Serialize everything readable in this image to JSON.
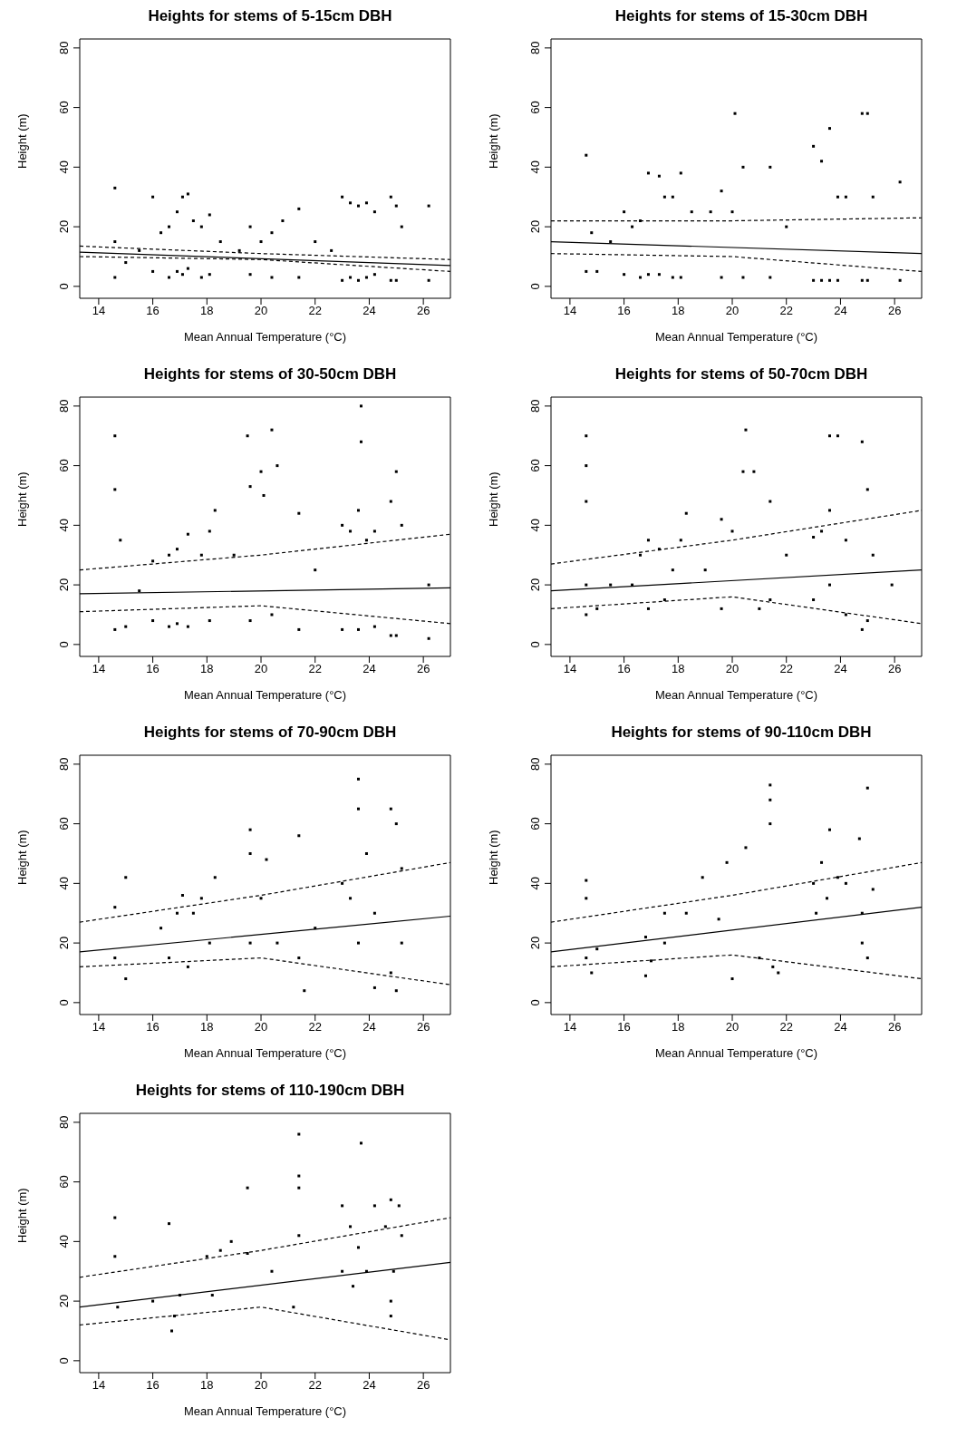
{
  "chart_data": [
    {
      "type": "scatter",
      "title": "Heights for stems of 5-15cm DBH",
      "xlabel": "Mean Annual Temperature (°C)",
      "ylabel": "Height (m)",
      "xlim": [
        13.3,
        27
      ],
      "ylim": [
        -4,
        83
      ],
      "xticks": [
        14,
        16,
        18,
        20,
        22,
        24,
        26
      ],
      "yticks": [
        0,
        20,
        40,
        60,
        80
      ],
      "series": [
        {
          "type": "scatter",
          "color": "#000000",
          "marker": "square",
          "x": [
            14.6,
            14.6,
            14.6,
            15.0,
            15.5,
            16.0,
            16.0,
            16.3,
            16.6,
            16.6,
            16.9,
            16.9,
            17.1,
            17.1,
            17.3,
            17.3,
            17.5,
            17.8,
            17.8,
            18.1,
            18.1,
            18.5,
            19.2,
            19.6,
            19.6,
            20.0,
            20.4,
            20.4,
            20.8,
            21.4,
            21.4,
            22.0,
            22.6,
            23.0,
            23.0,
            23.3,
            23.3,
            23.6,
            23.6,
            23.9,
            23.9,
            24.2,
            24.2,
            24.8,
            24.8,
            25.0,
            25.0,
            25.2,
            26.2,
            26.2
          ],
          "values": [
            33,
            3,
            15,
            8,
            12,
            30,
            5,
            18,
            20,
            3,
            25,
            5,
            30,
            4,
            31,
            6,
            22,
            20,
            3,
            24,
            4,
            15,
            12,
            20,
            4,
            15,
            18,
            3,
            22,
            26,
            3,
            15,
            12,
            30,
            2,
            28,
            3,
            27,
            2,
            28,
            3,
            25,
            4,
            30,
            2,
            27,
            2,
            20,
            27,
            2
          ]
        },
        {
          "type": "line",
          "color": "#000000",
          "line_style": "solid",
          "x": [
            13.3,
            27
          ],
          "values": [
            11.5,
            7
          ]
        },
        {
          "type": "line",
          "color": "#000000",
          "line_style": "dashed",
          "x": [
            13.3,
            20,
            27
          ],
          "values": [
            13.5,
            11,
            9
          ]
        },
        {
          "type": "line",
          "color": "#000000",
          "line_style": "dashed",
          "x": [
            13.3,
            20,
            27
          ],
          "values": [
            10,
            9,
            5
          ]
        }
      ]
    },
    {
      "type": "scatter",
      "title": "Heights for stems of 15-30cm DBH",
      "xlabel": "Mean Annual Temperature (°C)",
      "ylabel": "Height (m)",
      "xlim": [
        13.3,
        27
      ],
      "ylim": [
        -4,
        83
      ],
      "xticks": [
        14,
        16,
        18,
        20,
        22,
        24,
        26
      ],
      "yticks": [
        0,
        20,
        40,
        60,
        80
      ],
      "series": [
        {
          "type": "scatter",
          "color": "#000000",
          "marker": "square",
          "x": [
            14.6,
            14.6,
            14.8,
            15.0,
            15.5,
            16.0,
            16.0,
            16.3,
            16.6,
            16.6,
            16.9,
            16.9,
            17.3,
            17.3,
            17.5,
            17.8,
            17.8,
            18.1,
            18.1,
            18.5,
            19.2,
            19.6,
            19.6,
            20.1,
            20.0,
            20.4,
            20.4,
            21.4,
            21.4,
            22.0,
            23.0,
            23.0,
            23.3,
            23.3,
            23.6,
            23.6,
            23.9,
            23.9,
            24.2,
            24.8,
            24.8,
            25.0,
            25.0,
            25.2,
            26.2,
            26.2
          ],
          "values": [
            44,
            5,
            18,
            5,
            15,
            25,
            4,
            20,
            22,
            3,
            38,
            4,
            37,
            4,
            30,
            30,
            3,
            38,
            3,
            25,
            25,
            32,
            3,
            58,
            25,
            40,
            3,
            40,
            3,
            20,
            47,
            2,
            42,
            2,
            53,
            2,
            30,
            2,
            30,
            58,
            2,
            58,
            2,
            30,
            35,
            2
          ]
        },
        {
          "type": "line",
          "color": "#000000",
          "line_style": "solid",
          "x": [
            13.3,
            27
          ],
          "values": [
            15,
            11
          ]
        },
        {
          "type": "line",
          "color": "#000000",
          "line_style": "dashed",
          "x": [
            13.3,
            20,
            27
          ],
          "values": [
            22,
            22,
            23
          ]
        },
        {
          "type": "line",
          "color": "#000000",
          "line_style": "dashed",
          "x": [
            13.3,
            20,
            27
          ],
          "values": [
            11,
            10,
            5
          ]
        }
      ]
    },
    {
      "type": "scatter",
      "title": "Heights for stems of 30-50cm DBH",
      "xlabel": "Mean Annual Temperature (°C)",
      "ylabel": "Height (m)",
      "xlim": [
        13.3,
        27
      ],
      "ylim": [
        -4,
        83
      ],
      "xticks": [
        14,
        16,
        18,
        20,
        22,
        24,
        26
      ],
      "yticks": [
        0,
        20,
        40,
        60,
        80
      ],
      "series": [
        {
          "type": "scatter",
          "color": "#000000",
          "marker": "square",
          "x": [
            14.6,
            14.6,
            14.6,
            14.8,
            15.0,
            15.5,
            16.0,
            16.0,
            16.6,
            16.6,
            16.9,
            16.9,
            17.3,
            17.3,
            17.8,
            18.1,
            18.1,
            18.3,
            19.0,
            19.5,
            19.6,
            19.6,
            20.0,
            20.1,
            20.4,
            20.4,
            20.6,
            21.4,
            21.4,
            22.0,
            23.0,
            23.0,
            23.3,
            23.6,
            23.6,
            23.7,
            23.7,
            23.9,
            24.2,
            24.2,
            24.8,
            24.8,
            25.0,
            25.0,
            25.2,
            26.2,
            26.2
          ],
          "values": [
            70,
            52,
            5,
            35,
            6,
            18,
            28,
            8,
            30,
            6,
            32,
            7,
            37,
            6,
            30,
            38,
            8,
            45,
            30,
            70,
            53,
            8,
            58,
            50,
            72,
            10,
            60,
            44,
            5,
            25,
            40,
            5,
            38,
            45,
            5,
            80,
            68,
            35,
            38,
            6,
            48,
            3,
            58,
            3,
            40,
            20,
            2
          ]
        },
        {
          "type": "line",
          "color": "#000000",
          "line_style": "solid",
          "x": [
            13.3,
            27
          ],
          "values": [
            17,
            19
          ]
        },
        {
          "type": "line",
          "color": "#000000",
          "line_style": "dashed",
          "x": [
            13.3,
            20,
            27
          ],
          "values": [
            25,
            30,
            37
          ]
        },
        {
          "type": "line",
          "color": "#000000",
          "line_style": "dashed",
          "x": [
            13.3,
            20,
            27
          ],
          "values": [
            11,
            13,
            7
          ]
        }
      ]
    },
    {
      "type": "scatter",
      "title": "Heights for stems of 50-70cm DBH",
      "xlabel": "Mean Annual Temperature (°C)",
      "ylabel": "Height (m)",
      "xlim": [
        13.3,
        27
      ],
      "ylim": [
        -4,
        83
      ],
      "xticks": [
        14,
        16,
        18,
        20,
        22,
        24,
        26
      ],
      "yticks": [
        0,
        20,
        40,
        60,
        80
      ],
      "series": [
        {
          "type": "scatter",
          "color": "#000000",
          "marker": "square",
          "x": [
            14.6,
            14.6,
            14.6,
            14.6,
            14.6,
            15.0,
            15.5,
            16.3,
            16.6,
            16.9,
            16.9,
            17.3,
            17.5,
            17.8,
            18.1,
            18.3,
            19.0,
            19.6,
            19.6,
            20.0,
            20.4,
            20.5,
            20.8,
            21.0,
            21.4,
            21.4,
            22.0,
            23.0,
            23.0,
            23.3,
            23.6,
            23.6,
            23.6,
            23.9,
            24.2,
            24.2,
            24.8,
            24.8,
            25.0,
            25.0,
            25.2,
            25.9
          ],
          "values": [
            70,
            60,
            48,
            20,
            10,
            12,
            20,
            20,
            30,
            35,
            12,
            32,
            15,
            25,
            35,
            44,
            25,
            42,
            12,
            38,
            58,
            72,
            58,
            12,
            48,
            15,
            30,
            36,
            15,
            38,
            70,
            45,
            20,
            70,
            35,
            10,
            68,
            5,
            52,
            8,
            30,
            20
          ]
        },
        {
          "type": "line",
          "color": "#000000",
          "line_style": "solid",
          "x": [
            13.3,
            27
          ],
          "values": [
            18,
            25
          ]
        },
        {
          "type": "line",
          "color": "#000000",
          "line_style": "dashed",
          "x": [
            13.3,
            20,
            27
          ],
          "values": [
            27,
            35,
            45
          ]
        },
        {
          "type": "line",
          "color": "#000000",
          "line_style": "dashed",
          "x": [
            13.3,
            20,
            27
          ],
          "values": [
            12,
            16,
            7
          ]
        }
      ]
    },
    {
      "type": "scatter",
      "title": "Heights for stems of 70-90cm DBH",
      "xlabel": "Mean Annual Temperature (°C)",
      "ylabel": "Height (m)",
      "xlim": [
        13.3,
        27
      ],
      "ylim": [
        -4,
        83
      ],
      "xticks": [
        14,
        16,
        18,
        20,
        22,
        24,
        26
      ],
      "yticks": [
        0,
        20,
        40,
        60,
        80
      ],
      "series": [
        {
          "type": "scatter",
          "color": "#000000",
          "marker": "square",
          "x": [
            14.6,
            14.6,
            15.0,
            15.0,
            16.3,
            16.6,
            16.9,
            17.1,
            17.3,
            17.5,
            17.8,
            18.1,
            18.3,
            19.6,
            19.6,
            19.6,
            20.0,
            20.2,
            20.6,
            21.4,
            21.4,
            21.6,
            22.0,
            23.0,
            23.3,
            23.6,
            23.6,
            23.6,
            23.9,
            24.2,
            24.2,
            24.8,
            24.8,
            25.0,
            25.0,
            25.2,
            25.2
          ],
          "values": [
            32,
            15,
            42,
            8,
            25,
            15,
            30,
            36,
            12,
            30,
            35,
            20,
            42,
            58,
            50,
            20,
            35,
            48,
            20,
            56,
            15,
            4,
            25,
            40,
            35,
            75,
            65,
            20,
            50,
            30,
            5,
            65,
            10,
            60,
            4,
            45,
            20
          ]
        },
        {
          "type": "line",
          "color": "#000000",
          "line_style": "solid",
          "x": [
            13.3,
            27
          ],
          "values": [
            17,
            29
          ]
        },
        {
          "type": "line",
          "color": "#000000",
          "line_style": "dashed",
          "x": [
            13.3,
            20,
            27
          ],
          "values": [
            27,
            36,
            47
          ]
        },
        {
          "type": "line",
          "color": "#000000",
          "line_style": "dashed",
          "x": [
            13.3,
            20,
            27
          ],
          "values": [
            12,
            15,
            6
          ]
        }
      ]
    },
    {
      "type": "scatter",
      "title": "Heights for stems of 90-110cm DBH",
      "xlabel": "Mean Annual Temperature (°C)",
      "ylabel": "Height (m)",
      "xlim": [
        13.3,
        27
      ],
      "ylim": [
        -4,
        83
      ],
      "xticks": [
        14,
        16,
        18,
        20,
        22,
        24,
        26
      ],
      "yticks": [
        0,
        20,
        40,
        60,
        80
      ],
      "series": [
        {
          "type": "scatter",
          "color": "#000000",
          "marker": "square",
          "x": [
            14.6,
            14.6,
            14.6,
            14.8,
            15.0,
            16.8,
            16.8,
            17.0,
            17.5,
            17.5,
            18.3,
            18.9,
            19.5,
            19.8,
            20.0,
            20.5,
            21.0,
            21.4,
            21.4,
            21.4,
            21.5,
            21.7,
            23.0,
            23.1,
            23.3,
            23.5,
            23.6,
            23.9,
            24.2,
            24.7,
            24.8,
            24.8,
            25.0,
            25.0,
            25.2
          ],
          "values": [
            41,
            35,
            15,
            10,
            18,
            22,
            9,
            14,
            30,
            20,
            30,
            42,
            28,
            47,
            8,
            52,
            15,
            73,
            68,
            60,
            12,
            10,
            40,
            30,
            47,
            35,
            58,
            42,
            40,
            55,
            30,
            20,
            72,
            15,
            38
          ]
        },
        {
          "type": "line",
          "color": "#000000",
          "line_style": "solid",
          "x": [
            13.3,
            27
          ],
          "values": [
            17,
            32
          ]
        },
        {
          "type": "line",
          "color": "#000000",
          "line_style": "dashed",
          "x": [
            13.3,
            20,
            27
          ],
          "values": [
            27,
            36,
            47
          ]
        },
        {
          "type": "line",
          "color": "#000000",
          "line_style": "dashed",
          "x": [
            13.3,
            20,
            27
          ],
          "values": [
            12,
            16,
            8
          ]
        }
      ]
    },
    {
      "type": "scatter",
      "title": "Heights for stems of 110-190cm DBH",
      "xlabel": "Mean Annual Temperature (°C)",
      "ylabel": "Height (m)",
      "xlim": [
        13.3,
        27
      ],
      "ylim": [
        -4,
        83
      ],
      "xticks": [
        14,
        16,
        18,
        20,
        22,
        24,
        26
      ],
      "yticks": [
        0,
        20,
        40,
        60,
        80
      ],
      "series": [
        {
          "type": "scatter",
          "color": "#000000",
          "marker": "square",
          "x": [
            14.6,
            14.6,
            14.7,
            16.0,
            16.6,
            16.7,
            16.8,
            17.0,
            18.0,
            18.2,
            18.5,
            18.9,
            19.5,
            19.5,
            20.4,
            21.2,
            21.4,
            21.4,
            21.4,
            21.4,
            23.0,
            23.0,
            23.3,
            23.4,
            23.6,
            23.7,
            23.9,
            24.2,
            24.6,
            24.8,
            24.8,
            24.8,
            24.9,
            25.1,
            25.2
          ],
          "values": [
            48,
            35,
            18,
            20,
            46,
            10,
            15,
            22,
            35,
            22,
            37,
            40,
            58,
            36,
            30,
            18,
            76,
            62,
            58,
            42,
            52,
            30,
            45,
            25,
            38,
            73,
            30,
            52,
            45,
            54,
            20,
            15,
            30,
            52,
            42
          ]
        },
        {
          "type": "line",
          "color": "#000000",
          "line_style": "solid",
          "x": [
            13.3,
            27
          ],
          "values": [
            18,
            33
          ]
        },
        {
          "type": "line",
          "color": "#000000",
          "line_style": "dashed",
          "x": [
            13.3,
            20,
            27
          ],
          "values": [
            28,
            37,
            48
          ]
        },
        {
          "type": "line",
          "color": "#000000",
          "line_style": "dashed",
          "x": [
            13.3,
            20,
            27
          ],
          "values": [
            12,
            18,
            7
          ]
        }
      ]
    }
  ]
}
